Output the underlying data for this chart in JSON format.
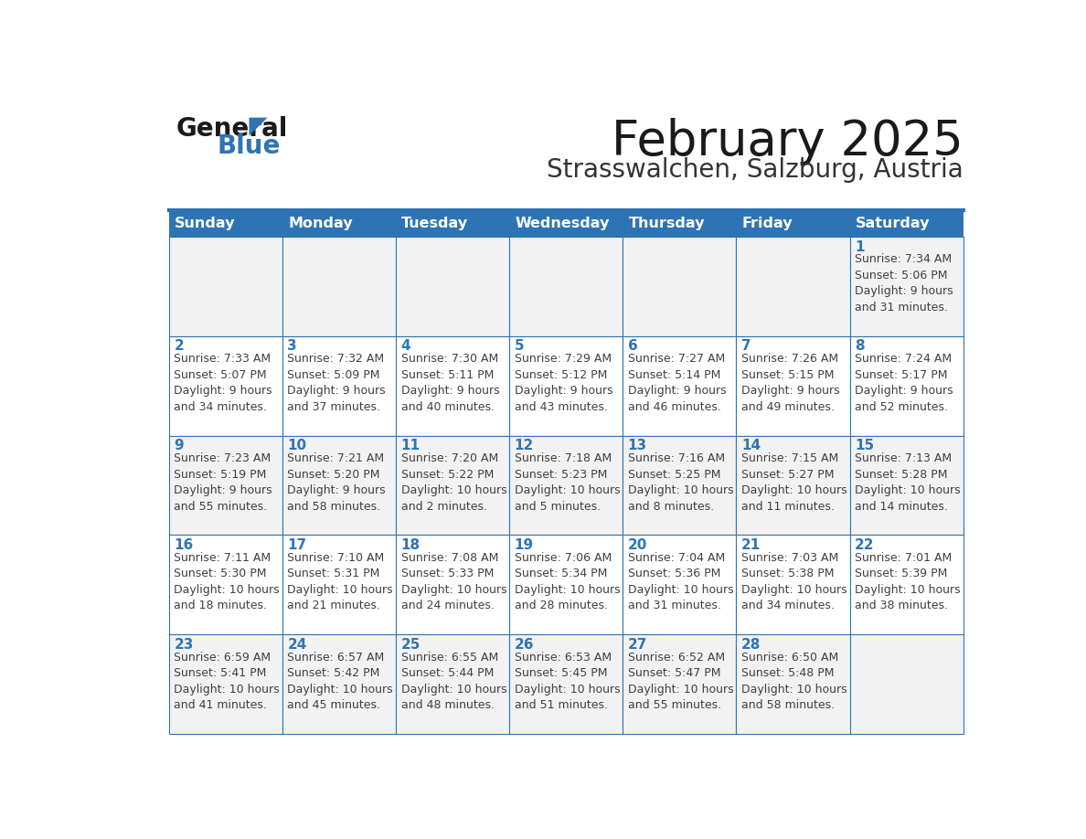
{
  "title": "February 2025",
  "subtitle": "Strasswalchen, Salzburg, Austria",
  "days_of_week": [
    "Sunday",
    "Monday",
    "Tuesday",
    "Wednesday",
    "Thursday",
    "Friday",
    "Saturday"
  ],
  "header_bg": "#2E74B5",
  "header_text": "#FFFFFF",
  "cell_bg_light": "#F2F2F2",
  "cell_bg_white": "#FFFFFF",
  "border_color": "#2E74B5",
  "title_color": "#1a1a1a",
  "subtitle_color": "#333333",
  "day_number_color": "#2E74B5",
  "cell_text_color": "#404040",
  "logo_black": "#1a1a1a",
  "logo_blue": "#2E74B5",
  "weeks": [
    [
      {
        "day": "",
        "info": ""
      },
      {
        "day": "",
        "info": ""
      },
      {
        "day": "",
        "info": ""
      },
      {
        "day": "",
        "info": ""
      },
      {
        "day": "",
        "info": ""
      },
      {
        "day": "",
        "info": ""
      },
      {
        "day": "1",
        "info": "Sunrise: 7:34 AM\nSunset: 5:06 PM\nDaylight: 9 hours\nand 31 minutes."
      }
    ],
    [
      {
        "day": "2",
        "info": "Sunrise: 7:33 AM\nSunset: 5:07 PM\nDaylight: 9 hours\nand 34 minutes."
      },
      {
        "day": "3",
        "info": "Sunrise: 7:32 AM\nSunset: 5:09 PM\nDaylight: 9 hours\nand 37 minutes."
      },
      {
        "day": "4",
        "info": "Sunrise: 7:30 AM\nSunset: 5:11 PM\nDaylight: 9 hours\nand 40 minutes."
      },
      {
        "day": "5",
        "info": "Sunrise: 7:29 AM\nSunset: 5:12 PM\nDaylight: 9 hours\nand 43 minutes."
      },
      {
        "day": "6",
        "info": "Sunrise: 7:27 AM\nSunset: 5:14 PM\nDaylight: 9 hours\nand 46 minutes."
      },
      {
        "day": "7",
        "info": "Sunrise: 7:26 AM\nSunset: 5:15 PM\nDaylight: 9 hours\nand 49 minutes."
      },
      {
        "day": "8",
        "info": "Sunrise: 7:24 AM\nSunset: 5:17 PM\nDaylight: 9 hours\nand 52 minutes."
      }
    ],
    [
      {
        "day": "9",
        "info": "Sunrise: 7:23 AM\nSunset: 5:19 PM\nDaylight: 9 hours\nand 55 minutes."
      },
      {
        "day": "10",
        "info": "Sunrise: 7:21 AM\nSunset: 5:20 PM\nDaylight: 9 hours\nand 58 minutes."
      },
      {
        "day": "11",
        "info": "Sunrise: 7:20 AM\nSunset: 5:22 PM\nDaylight: 10 hours\nand 2 minutes."
      },
      {
        "day": "12",
        "info": "Sunrise: 7:18 AM\nSunset: 5:23 PM\nDaylight: 10 hours\nand 5 minutes."
      },
      {
        "day": "13",
        "info": "Sunrise: 7:16 AM\nSunset: 5:25 PM\nDaylight: 10 hours\nand 8 minutes."
      },
      {
        "day": "14",
        "info": "Sunrise: 7:15 AM\nSunset: 5:27 PM\nDaylight: 10 hours\nand 11 minutes."
      },
      {
        "day": "15",
        "info": "Sunrise: 7:13 AM\nSunset: 5:28 PM\nDaylight: 10 hours\nand 14 minutes."
      }
    ],
    [
      {
        "day": "16",
        "info": "Sunrise: 7:11 AM\nSunset: 5:30 PM\nDaylight: 10 hours\nand 18 minutes."
      },
      {
        "day": "17",
        "info": "Sunrise: 7:10 AM\nSunset: 5:31 PM\nDaylight: 10 hours\nand 21 minutes."
      },
      {
        "day": "18",
        "info": "Sunrise: 7:08 AM\nSunset: 5:33 PM\nDaylight: 10 hours\nand 24 minutes."
      },
      {
        "day": "19",
        "info": "Sunrise: 7:06 AM\nSunset: 5:34 PM\nDaylight: 10 hours\nand 28 minutes."
      },
      {
        "day": "20",
        "info": "Sunrise: 7:04 AM\nSunset: 5:36 PM\nDaylight: 10 hours\nand 31 minutes."
      },
      {
        "day": "21",
        "info": "Sunrise: 7:03 AM\nSunset: 5:38 PM\nDaylight: 10 hours\nand 34 minutes."
      },
      {
        "day": "22",
        "info": "Sunrise: 7:01 AM\nSunset: 5:39 PM\nDaylight: 10 hours\nand 38 minutes."
      }
    ],
    [
      {
        "day": "23",
        "info": "Sunrise: 6:59 AM\nSunset: 5:41 PM\nDaylight: 10 hours\nand 41 minutes."
      },
      {
        "day": "24",
        "info": "Sunrise: 6:57 AM\nSunset: 5:42 PM\nDaylight: 10 hours\nand 45 minutes."
      },
      {
        "day": "25",
        "info": "Sunrise: 6:55 AM\nSunset: 5:44 PM\nDaylight: 10 hours\nand 48 minutes."
      },
      {
        "day": "26",
        "info": "Sunrise: 6:53 AM\nSunset: 5:45 PM\nDaylight: 10 hours\nand 51 minutes."
      },
      {
        "day": "27",
        "info": "Sunrise: 6:52 AM\nSunset: 5:47 PM\nDaylight: 10 hours\nand 55 minutes."
      },
      {
        "day": "28",
        "info": "Sunrise: 6:50 AM\nSunset: 5:48 PM\nDaylight: 10 hours\nand 58 minutes."
      },
      {
        "day": "",
        "info": ""
      }
    ]
  ]
}
